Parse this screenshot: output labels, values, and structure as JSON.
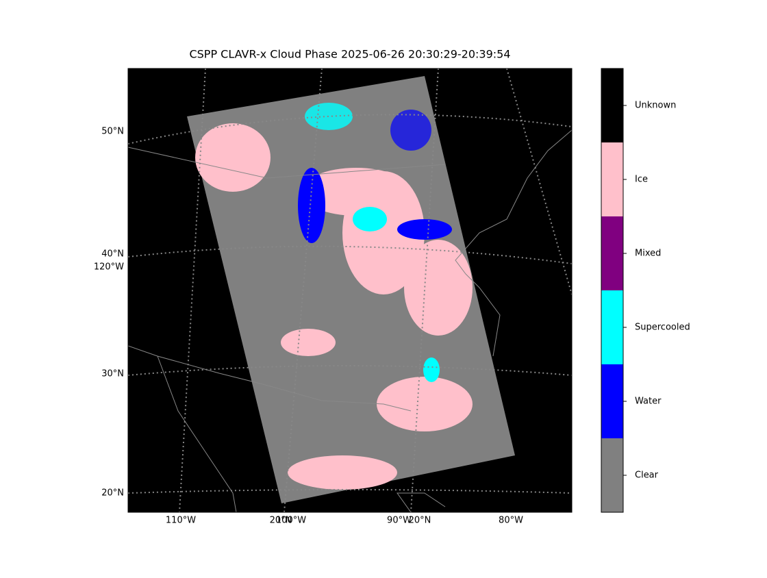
{
  "title": "CSPP CLAVR-x Cloud Phase 2025-06-26 20:30:29-20:39:54",
  "map": {
    "lat_labels": [
      "50°N",
      "40°N",
      "120°W",
      "30°N",
      "20°N"
    ],
    "lon_labels": [
      "110°W",
      "20°N",
      "100°W",
      "90°W",
      "20°N",
      "80°W"
    ]
  },
  "colorbar": {
    "classes": [
      {
        "label": "Clear",
        "color": "#808080"
      },
      {
        "label": "Water",
        "color": "#0000ff"
      },
      {
        "label": "Supercooled",
        "color": "#00ffff"
      },
      {
        "label": "Mixed",
        "color": "#800080"
      },
      {
        "label": "Ice",
        "color": "#ffc0cb"
      },
      {
        "label": "Unknown",
        "color": "#000000"
      }
    ]
  }
}
